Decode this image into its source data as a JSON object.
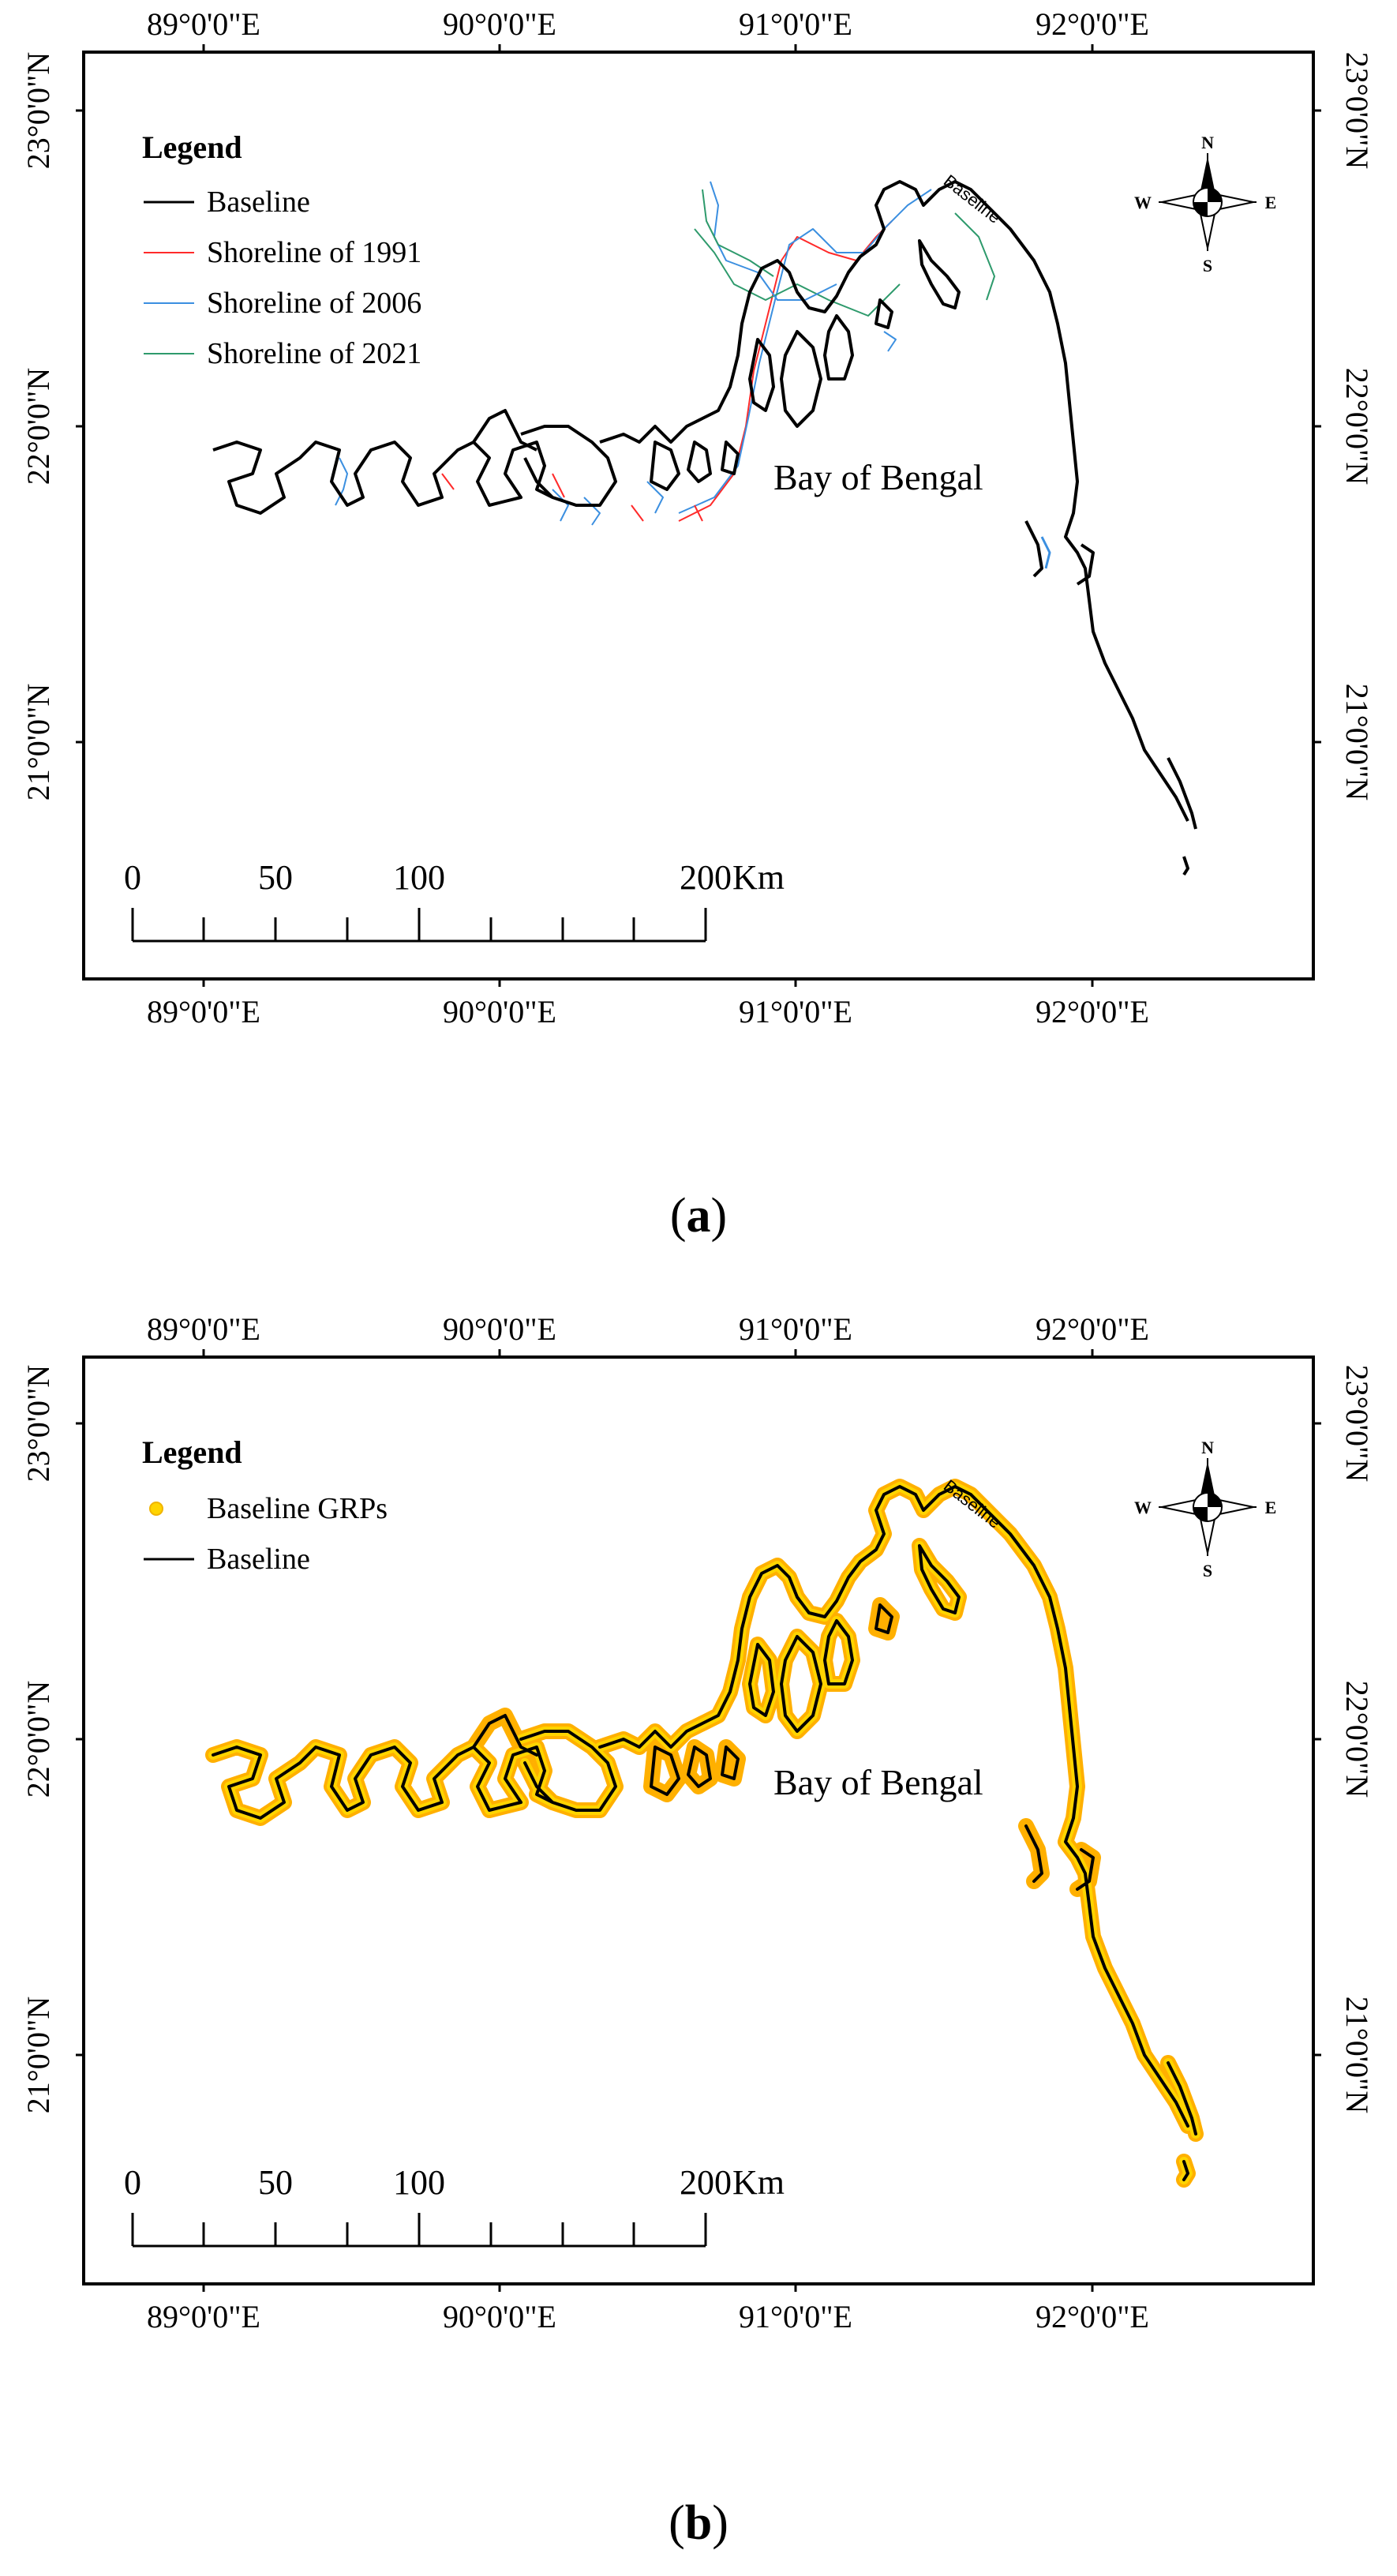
{
  "panel_a": {
    "caption": "a",
    "top_ticks": [
      "89°0'0\"E",
      "90°0'0\"E",
      "91°0'0\"E",
      "92°0'0\"E"
    ],
    "bottom_ticks": [
      "89°0'0\"E",
      "90°0'0\"E",
      "91°0'0\"E",
      "92°0'0\"E"
    ],
    "left_ticks": [
      "23°0'0\"N",
      "22°0'0\"N",
      "21°0'0\"N"
    ],
    "right_ticks": [
      "23°0'0\"N",
      "22°0'0\"N",
      "21°0'0\"N"
    ],
    "legend": {
      "title": "Legend",
      "items": [
        {
          "label": "Baseline",
          "color": "#000000"
        },
        {
          "label": "Shoreline of 1991",
          "color": "#ff2a2a"
        },
        {
          "label": "Shoreline of 2006",
          "color": "#3b8fe0"
        },
        {
          "label": "Shoreline of 2021",
          "color": "#2e9a6c"
        }
      ]
    },
    "water_label": "Bay of Bengal",
    "baseline_tag": "Baseline",
    "compass": {
      "n": "N",
      "s": "S",
      "e": "E",
      "w": "W"
    },
    "scale": {
      "labels": [
        "0",
        "50",
        "100",
        "200"
      ],
      "unit": "Km"
    }
  },
  "panel_b": {
    "caption": "b",
    "top_ticks": [
      "89°0'0\"E",
      "90°0'0\"E",
      "91°0'0\"E",
      "92°0'0\"E"
    ],
    "bottom_ticks": [
      "89°0'0\"E",
      "90°0'0\"E",
      "91°0'0\"E",
      "92°0'0\"E"
    ],
    "left_ticks": [
      "23°0'0\"N",
      "22°0'0\"N",
      "21°0'0\"N"
    ],
    "right_ticks": [
      "23°0'0\"N",
      "22°0'0\"N",
      "21°0'0\"N"
    ],
    "legend": {
      "title": "Legend",
      "items": [
        {
          "label": "Baseline GRPs",
          "color": "#ffd400"
        },
        {
          "label": "Baseline",
          "color": "#000000"
        }
      ]
    },
    "water_label": "Bay of Bengal",
    "baseline_tag": "Baseline",
    "compass": {
      "n": "N",
      "s": "S",
      "e": "E",
      "w": "W"
    },
    "scale": {
      "labels": [
        "0",
        "50",
        "100",
        "200"
      ],
      "unit": "Km"
    }
  }
}
